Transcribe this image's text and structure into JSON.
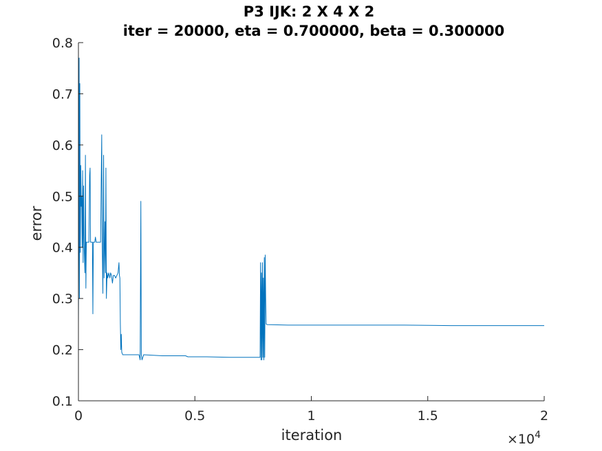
{
  "chart_data": {
    "type": "line",
    "title_line1": "P3 IJK: 2 X 4 X 2",
    "title_line2": "iter = 20000, eta = 0.700000, beta = 0.300000",
    "xlabel": "iteration",
    "ylabel": "error",
    "x_exponent_base": "×10",
    "x_exponent_power": "4",
    "xlim": [
      0,
      20000
    ],
    "ylim": [
      0.1,
      0.8
    ],
    "xticks": [
      0,
      5000,
      10000,
      15000,
      20000
    ],
    "xtick_labels": [
      "0",
      "0.5",
      "1",
      "1.5",
      "2"
    ],
    "yticks": [
      0.1,
      0.2,
      0.3,
      0.4,
      0.5,
      0.6,
      0.7,
      0.8
    ],
    "ytick_labels": [
      "0.1",
      "0.2",
      "0.3",
      "0.4",
      "0.5",
      "0.6",
      "0.7",
      "0.8"
    ],
    "grid": false,
    "line_color": "#0072BD",
    "series": [
      {
        "points": [
          [
            0,
            0.25
          ],
          [
            15,
            0.42
          ],
          [
            30,
            0.77
          ],
          [
            45,
            0.3
          ],
          [
            60,
            0.72
          ],
          [
            80,
            0.39
          ],
          [
            100,
            0.56
          ],
          [
            120,
            0.48
          ],
          [
            140,
            0.5
          ],
          [
            160,
            0.4
          ],
          [
            180,
            0.55
          ],
          [
            200,
            0.37
          ],
          [
            220,
            0.52
          ],
          [
            240,
            0.41
          ],
          [
            260,
            0.38
          ],
          [
            280,
            0.35
          ],
          [
            300,
            0.58
          ],
          [
            320,
            0.32
          ],
          [
            340,
            0.41
          ],
          [
            360,
            0.41
          ],
          [
            400,
            0.41
          ],
          [
            450,
            0.41
          ],
          [
            480,
            0.54
          ],
          [
            500,
            0.555
          ],
          [
            520,
            0.41
          ],
          [
            560,
            0.41
          ],
          [
            600,
            0.41
          ],
          [
            620,
            0.27
          ],
          [
            640,
            0.41
          ],
          [
            700,
            0.41
          ],
          [
            730,
            0.42
          ],
          [
            760,
            0.41
          ],
          [
            900,
            0.41
          ],
          [
            950,
            0.41
          ],
          [
            1000,
            0.62
          ],
          [
            1020,
            0.41
          ],
          [
            1050,
            0.31
          ],
          [
            1080,
            0.58
          ],
          [
            1100,
            0.34
          ],
          [
            1140,
            0.45
          ],
          [
            1160,
            0.35
          ],
          [
            1180,
            0.555
          ],
          [
            1200,
            0.3
          ],
          [
            1230,
            0.35
          ],
          [
            1260,
            0.34
          ],
          [
            1300,
            0.35
          ],
          [
            1350,
            0.34
          ],
          [
            1380,
            0.35
          ],
          [
            1420,
            0.345
          ],
          [
            1460,
            0.33
          ],
          [
            1500,
            0.345
          ],
          [
            1550,
            0.345
          ],
          [
            1600,
            0.34
          ],
          [
            1650,
            0.345
          ],
          [
            1700,
            0.35
          ],
          [
            1740,
            0.37
          ],
          [
            1760,
            0.345
          ],
          [
            1780,
            0.34
          ],
          [
            1800,
            0.25
          ],
          [
            1820,
            0.2
          ],
          [
            1840,
            0.23
          ],
          [
            1860,
            0.195
          ],
          [
            1900,
            0.19
          ],
          [
            2000,
            0.19
          ],
          [
            2200,
            0.19
          ],
          [
            2400,
            0.19
          ],
          [
            2600,
            0.19
          ],
          [
            2650,
            0.18
          ],
          [
            2680,
            0.49
          ],
          [
            2700,
            0.19
          ],
          [
            2730,
            0.18
          ],
          [
            2800,
            0.19
          ],
          [
            3200,
            0.189
          ],
          [
            3600,
            0.188
          ],
          [
            4000,
            0.188
          ],
          [
            4600,
            0.188
          ],
          [
            4700,
            0.186
          ],
          [
            5500,
            0.186
          ],
          [
            6500,
            0.185
          ],
          [
            7500,
            0.185
          ],
          [
            7800,
            0.185
          ],
          [
            7820,
            0.37
          ],
          [
            7840,
            0.18
          ],
          [
            7860,
            0.35
          ],
          [
            7880,
            0.18
          ],
          [
            7900,
            0.37
          ],
          [
            7920,
            0.185
          ],
          [
            7940,
            0.34
          ],
          [
            7960,
            0.18
          ],
          [
            7980,
            0.38
          ],
          [
            8000,
            0.185
          ],
          [
            8020,
            0.385
          ],
          [
            8040,
            0.3
          ],
          [
            8060,
            0.25
          ],
          [
            8100,
            0.249
          ],
          [
            9000,
            0.248
          ],
          [
            10000,
            0.248
          ],
          [
            12000,
            0.248
          ],
          [
            14000,
            0.248
          ],
          [
            16000,
            0.247
          ],
          [
            18000,
            0.247
          ],
          [
            20000,
            0.247
          ]
        ]
      }
    ]
  }
}
